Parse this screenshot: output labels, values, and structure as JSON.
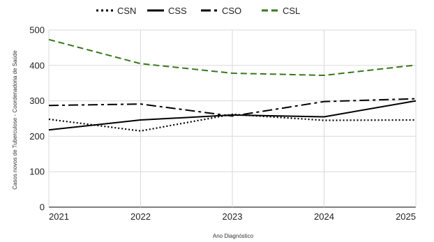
{
  "chart_data": {
    "type": "line",
    "x": [
      2021,
      2022,
      2023,
      2024,
      2025
    ],
    "xlabel": "Ano Diagnóstico",
    "ylabel": "Casos novos de Tuberculose - Coordenadoria de Saúde",
    "ylim": [
      0,
      500
    ],
    "yticks": [
      0,
      100,
      200,
      300,
      400,
      500
    ],
    "grid": true,
    "legend_position": "top",
    "series": [
      {
        "name": "CSN",
        "values": [
          248,
          215,
          262,
          245,
          246
        ],
        "color": "#000000",
        "dash": "dotted"
      },
      {
        "name": "CSS",
        "values": [
          218,
          246,
          260,
          255,
          300
        ],
        "color": "#000000",
        "dash": "solid"
      },
      {
        "name": "CSO",
        "values": [
          287,
          291,
          257,
          298,
          306
        ],
        "color": "#000000",
        "dash": "dash-dot"
      },
      {
        "name": "CSL",
        "values": [
          473,
          405,
          378,
          372,
          401
        ],
        "color": "#38761d",
        "dash": "dashed"
      }
    ]
  }
}
